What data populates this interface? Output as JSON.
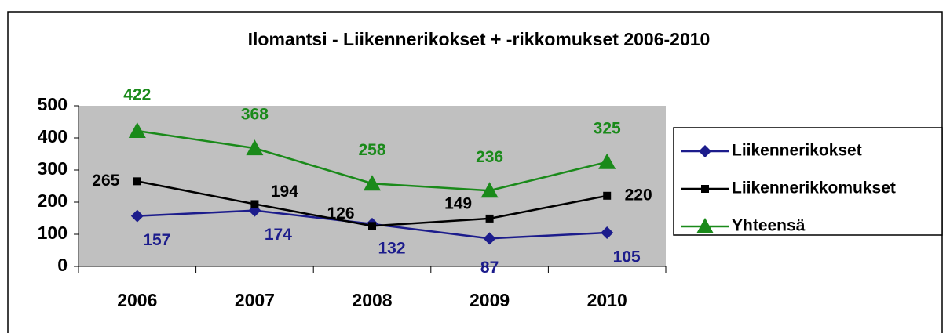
{
  "chart_data": {
    "type": "line",
    "title": "Ilomantsi - Liikennerikokset + -rikkomukset 2006-2010",
    "categories": [
      "2006",
      "2007",
      "2008",
      "2009",
      "2010"
    ],
    "series": [
      {
        "name": "Liikennerikokset",
        "color": "#1c1c8c",
        "marker": "diamond",
        "values": [
          157,
          174,
          132,
          87,
          105
        ]
      },
      {
        "name": "Liikennerikkomukset",
        "color": "#000000",
        "marker": "square",
        "values": [
          265,
          194,
          126,
          149,
          220
        ]
      },
      {
        "name": "Yhteensä",
        "color": "#1a8a1a",
        "marker": "triangle",
        "values": [
          422,
          368,
          258,
          236,
          325
        ]
      }
    ],
    "ylim": [
      0,
      500
    ],
    "yticks": [
      0,
      100,
      200,
      300,
      400,
      500
    ],
    "grid": false,
    "legend": "right"
  }
}
